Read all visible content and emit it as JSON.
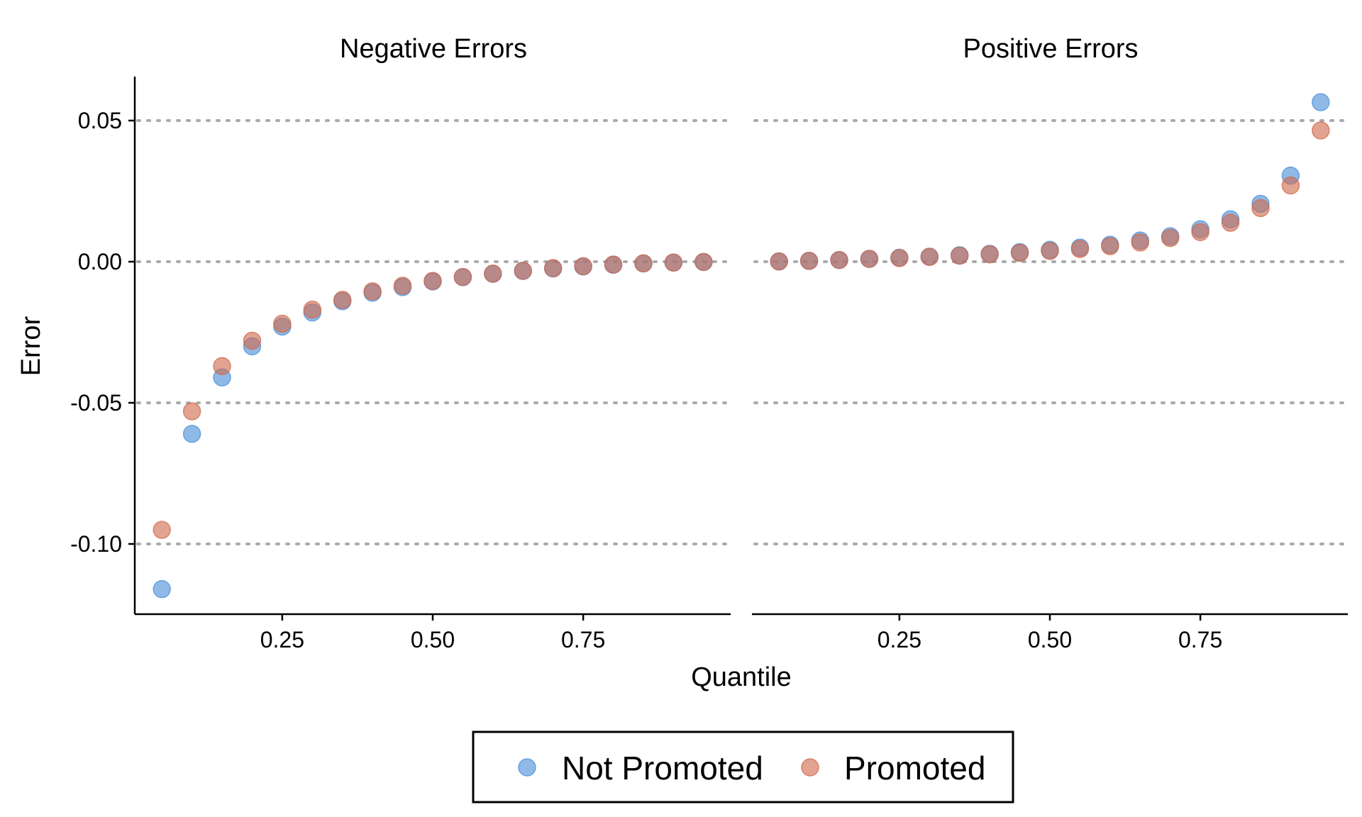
{
  "chart_data": {
    "type": "scatter",
    "ylabel": "Error",
    "xlabel": "Quantile",
    "ylim": [
      -0.125,
      0.065
    ],
    "yticks": [
      0.05,
      0.0,
      -0.05,
      -0.1
    ],
    "ytick_labels": [
      "0.05",
      "0.00",
      "-0.05",
      "-0.10"
    ],
    "xticks": [
      0.25,
      0.5,
      0.75
    ],
    "xtick_labels": [
      "0.25",
      "0.50",
      "0.75"
    ],
    "xlim": [
      0.005,
      0.995
    ],
    "grid": "horizontal dotted",
    "legend_position": "bottom",
    "colors": {
      "Not Promoted": "#4a90d9",
      "Promoted": "#d06a4e"
    },
    "series_names": [
      "Not Promoted",
      "Promoted"
    ],
    "panels": [
      {
        "title": "Negative Errors",
        "x": [
          0.05,
          0.1,
          0.15,
          0.2,
          0.25,
          0.3,
          0.35,
          0.4,
          0.45,
          0.5,
          0.55,
          0.6,
          0.65,
          0.7,
          0.75,
          0.8,
          0.85,
          0.9,
          0.95
        ],
        "series": [
          {
            "name": "Not Promoted",
            "values": [
              -0.116,
              -0.061,
              -0.041,
              -0.03,
              -0.023,
              -0.018,
              -0.014,
              -0.011,
              -0.009,
              -0.007,
              -0.0055,
              -0.0043,
              -0.0033,
              -0.0024,
              -0.0017,
              -0.0011,
              -0.0006,
              -0.0003,
              -0.0001
            ]
          },
          {
            "name": "Promoted",
            "values": [
              -0.095,
              -0.053,
              -0.037,
              -0.028,
              -0.022,
              -0.017,
              -0.0135,
              -0.0105,
              -0.0085,
              -0.0068,
              -0.0054,
              -0.0042,
              -0.0032,
              -0.0023,
              -0.0016,
              -0.001,
              -0.0006,
              -0.0003,
              -0.0001
            ]
          }
        ]
      },
      {
        "title": "Positive Errors",
        "x": [
          0.05,
          0.1,
          0.15,
          0.2,
          0.25,
          0.3,
          0.35,
          0.4,
          0.45,
          0.5,
          0.55,
          0.6,
          0.65,
          0.7,
          0.75,
          0.8,
          0.85,
          0.9,
          0.95
        ],
        "series": [
          {
            "name": "Not Promoted",
            "values": [
              0.0001,
              0.0003,
              0.0006,
              0.001,
              0.0014,
              0.0018,
              0.0023,
              0.0028,
              0.0034,
              0.0042,
              0.005,
              0.006,
              0.0075,
              0.009,
              0.0115,
              0.015,
              0.0205,
              0.0305,
              0.0565
            ]
          },
          {
            "name": "Promoted",
            "values": [
              0.0001,
              0.0003,
              0.0006,
              0.001,
              0.0013,
              0.0017,
              0.0021,
              0.0026,
              0.0031,
              0.0038,
              0.0045,
              0.0055,
              0.0068,
              0.0084,
              0.0105,
              0.0138,
              0.019,
              0.027,
              0.0465
            ]
          }
        ]
      }
    ]
  }
}
